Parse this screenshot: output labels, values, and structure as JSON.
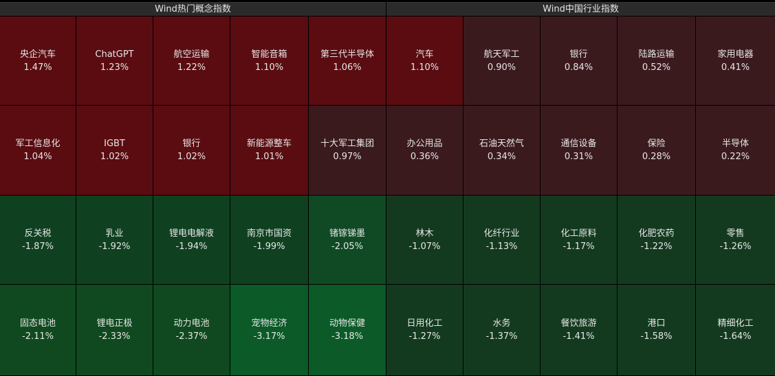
{
  "panels": [
    {
      "title": "Wind热门概念指数",
      "tiles": [
        {
          "name": "央企汽车",
          "change": "1.47%",
          "color": "#5a0c11"
        },
        {
          "name": "ChatGPT",
          "change": "1.23%",
          "color": "#5a0c11"
        },
        {
          "name": "航空运输",
          "change": "1.22%",
          "color": "#5a0c11"
        },
        {
          "name": "智能音箱",
          "change": "1.10%",
          "color": "#5a0c11"
        },
        {
          "name": "第三代半导体",
          "change": "1.06%",
          "color": "#5a0c11"
        },
        {
          "name": "军工信息化",
          "change": "1.04%",
          "color": "#5a0c11"
        },
        {
          "name": "IGBT",
          "change": "1.02%",
          "color": "#5a0c11"
        },
        {
          "name": "银行",
          "change": "1.02%",
          "color": "#5a0c11"
        },
        {
          "name": "新能源整车",
          "change": "1.01%",
          "color": "#5a0c11"
        },
        {
          "name": "十大军工集团",
          "change": "0.97%",
          "color": "#3b1a1e"
        },
        {
          "name": "反关税",
          "change": "-1.87%",
          "color": "#0f4020"
        },
        {
          "name": "乳业",
          "change": "-1.92%",
          "color": "#0f4020"
        },
        {
          "name": "锂电电解液",
          "change": "-1.94%",
          "color": "#0f4020"
        },
        {
          "name": "南京市国资",
          "change": "-1.99%",
          "color": "#0f4020"
        },
        {
          "name": "锗镓锑墨",
          "change": "-2.05%",
          "color": "#0f4a24"
        },
        {
          "name": "固态电池",
          "change": "-2.11%",
          "color": "#10491f"
        },
        {
          "name": "锂电正极",
          "change": "-2.33%",
          "color": "#10491f"
        },
        {
          "name": "动力电池",
          "change": "-2.37%",
          "color": "#10491f"
        },
        {
          "name": "宠物经济",
          "change": "-3.17%",
          "color": "#0b5a28"
        },
        {
          "name": "动物保健",
          "change": "-3.18%",
          "color": "#0b5a28"
        }
      ]
    },
    {
      "title": "Wind中国行业指数",
      "tiles": [
        {
          "name": "汽车",
          "change": "1.10%",
          "color": "#5a0c11"
        },
        {
          "name": "航天军工",
          "change": "0.90%",
          "color": "#3b1a1e"
        },
        {
          "name": "银行",
          "change": "0.84%",
          "color": "#3b1a1e"
        },
        {
          "name": "陆路运输",
          "change": "0.52%",
          "color": "#3b1a1e"
        },
        {
          "name": "家用电器",
          "change": "0.41%",
          "color": "#3b1a1e"
        },
        {
          "name": "办公用品",
          "change": "0.36%",
          "color": "#3b1a1e"
        },
        {
          "name": "石油天然气",
          "change": "0.34%",
          "color": "#3b1a1e"
        },
        {
          "name": "通信设备",
          "change": "0.31%",
          "color": "#3b1a1e"
        },
        {
          "name": "保险",
          "change": "0.28%",
          "color": "#3b1a1e"
        },
        {
          "name": "半导体",
          "change": "0.22%",
          "color": "#3b1a1e"
        },
        {
          "name": "林木",
          "change": "-1.07%",
          "color": "#133a1f"
        },
        {
          "name": "化纤行业",
          "change": "-1.13%",
          "color": "#133a1f"
        },
        {
          "name": "化工原料",
          "change": "-1.17%",
          "color": "#133a1f"
        },
        {
          "name": "化肥农药",
          "change": "-1.22%",
          "color": "#133a1f"
        },
        {
          "name": "零售",
          "change": "-1.26%",
          "color": "#133a1f"
        },
        {
          "name": "日用化工",
          "change": "-1.27%",
          "color": "#133a1f"
        },
        {
          "name": "水务",
          "change": "-1.37%",
          "color": "#133a1f"
        },
        {
          "name": "餐饮旅游",
          "change": "-1.41%",
          "color": "#133a1f"
        },
        {
          "name": "港口",
          "change": "-1.58%",
          "color": "#133a1f"
        },
        {
          "name": "精细化工",
          "change": "-1.64%",
          "color": "#133a1f"
        }
      ]
    }
  ]
}
